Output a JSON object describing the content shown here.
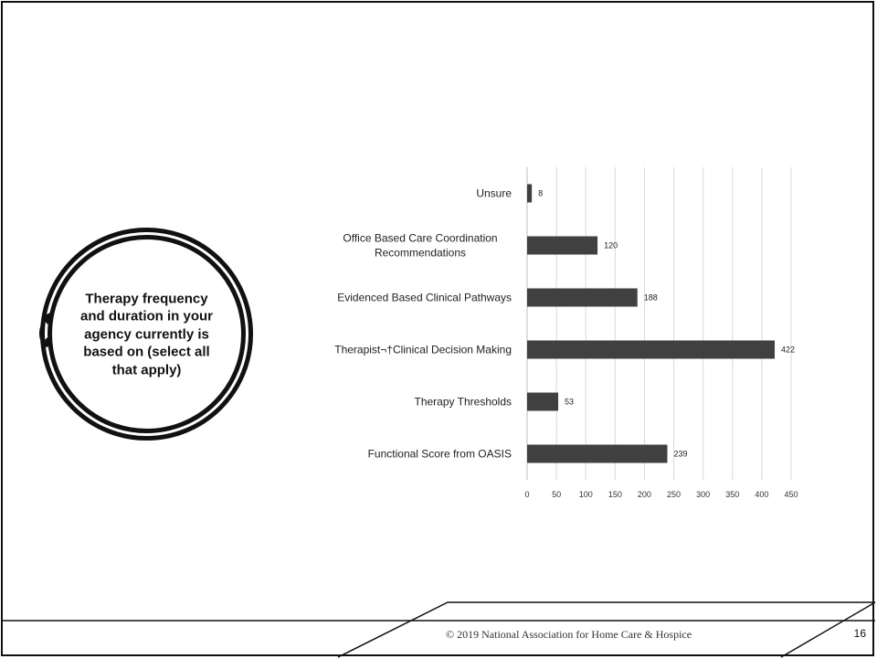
{
  "slide": {
    "question": "Therapy frequency and duration in your agency currently is based on (select all that apply)",
    "footer": "© 2019 National Association for Home Care & Hospice",
    "page_number": "16"
  },
  "chart_data": {
    "type": "bar",
    "orientation": "horizontal",
    "categories": [
      "Unsure",
      "Office Based Care Coordination Recommendations",
      "Evidenced Based Clinical Pathways",
      "Therapist¬†Clinical Decision Making",
      "Therapy Thresholds",
      "Functional Score from OASIS"
    ],
    "values": [
      8,
      120,
      188,
      422,
      53,
      239
    ],
    "xlim": [
      0,
      450
    ],
    "xticks": [
      0,
      50,
      100,
      150,
      200,
      250,
      300,
      350,
      400,
      450
    ],
    "bar_color": "#404040",
    "grid": true,
    "data_labels": true
  }
}
